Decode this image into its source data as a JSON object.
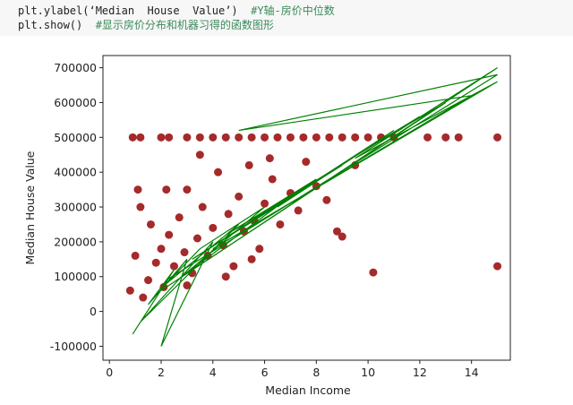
{
  "code": [
    {
      "code": "plt.ylabel(‘Median  House  Value’)  ",
      "comment": "#Y轴-房价中位数"
    },
    {
      "code": "plt.show()  ",
      "comment": "#显示房价分布和机器习得的函数图形"
    }
  ],
  "chart_data": {
    "type": "scatter",
    "xlabel": "Median Income",
    "ylabel": "Median House Value",
    "xlim": [
      -0.25,
      15.5
    ],
    "ylim": [
      -140000,
      735000
    ],
    "xticks": [
      0,
      2,
      4,
      6,
      8,
      10,
      12,
      14
    ],
    "yticks": [
      -100000,
      0,
      100000,
      200000,
      300000,
      400000,
      500000,
      600000,
      700000
    ],
    "series": [
      {
        "type": "scatter",
        "color": "#a52a2a",
        "x": [
          0.9,
          1.2,
          2.0,
          2.3,
          3.0,
          3.5,
          4.0,
          4.5,
          5.0,
          5.5,
          6.0,
          6.5,
          7.0,
          7.5,
          8.0,
          8.5,
          9.0,
          9.5,
          10.0,
          10.5,
          11.0,
          12.3,
          13.0,
          13.5,
          15.0,
          1.0,
          1.2,
          1.5,
          1.6,
          1.8,
          2.0,
          2.1,
          2.3,
          2.5,
          2.7,
          2.9,
          3.0,
          3.2,
          3.4,
          3.6,
          3.8,
          4.0,
          4.2,
          4.4,
          4.6,
          4.8,
          5.0,
          5.2,
          5.4,
          5.6,
          5.8,
          6.0,
          6.3,
          6.6,
          7.0,
          7.3,
          7.6,
          8.0,
          8.4,
          8.8,
          9.0,
          9.5,
          10.2,
          15.0,
          0.8,
          1.3,
          3.0,
          4.5,
          5.5,
          6.2,
          3.5,
          2.2,
          1.1
        ],
        "values": [
          500000,
          500000,
          500000,
          500000,
          500000,
          500000,
          500000,
          500000,
          500000,
          500000,
          500000,
          500000,
          500000,
          500000,
          500000,
          500000,
          500000,
          500000,
          500000,
          500000,
          500000,
          500000,
          500000,
          500000,
          500000,
          160000,
          300000,
          90000,
          250000,
          140000,
          180000,
          70000,
          220000,
          130000,
          270000,
          170000,
          350000,
          110000,
          210000,
          300000,
          160000,
          240000,
          400000,
          190000,
          280000,
          130000,
          330000,
          230000,
          420000,
          260000,
          180000,
          310000,
          380000,
          250000,
          340000,
          290000,
          430000,
          360000,
          320000,
          230000,
          215000,
          420000,
          112000,
          130000,
          60000,
          40000,
          75000,
          100000,
          150000,
          440000,
          450000,
          350000,
          350000
        ]
      },
      {
        "type": "line",
        "color": "#008000",
        "x": [
          0.9,
          2.5,
          1.5,
          3.0,
          2.0,
          4.0,
          1.2,
          5.0,
          2.2,
          3.5,
          6.0,
          2.8,
          7.0,
          4.5,
          8.0,
          3.2,
          9.0,
          5.5,
          10.0,
          6.5,
          11.0,
          8.5,
          12.0,
          10.0,
          13.0,
          2.0,
          15.0,
          9.5,
          15.0,
          4.0,
          14.0,
          5.0,
          15.0,
          2.2
        ],
        "values": [
          -65000,
          120000,
          20000,
          150000,
          -100000,
          200000,
          -30000,
          250000,
          80000,
          180000,
          300000,
          100000,
          330000,
          220000,
          380000,
          150000,
          420000,
          260000,
          470000,
          300000,
          520000,
          400000,
          560000,
          470000,
          600000,
          60000,
          700000,
          440000,
          660000,
          180000,
          620000,
          520000,
          680000,
          90000
        ]
      }
    ]
  }
}
